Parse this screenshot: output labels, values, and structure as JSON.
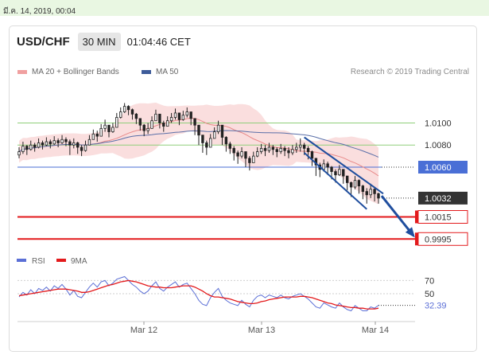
{
  "timestamp": "มี.ค. 14, 2019, 00:04",
  "header": {
    "symbol": "USD/CHF",
    "timeframe": "30 MIN",
    "clock": "01:04:46 CET"
  },
  "legend": {
    "bollinger": "MA 20 + Bollinger Bands",
    "ma50": "MA 50",
    "credit": "Research © 2019 Trading Central"
  },
  "colors": {
    "bollinger": "#f4b6b6",
    "ma20": "#e88a8a",
    "ma50": "#5b6fa8",
    "candle": "#222222",
    "green_level": "#8fcf7a",
    "blue_level": "#4a6fd6",
    "red_level": "#e31a1c",
    "current_label": "#333333",
    "rsi": "#5b6fd6",
    "rsi_ma": "#e31a1c",
    "arrow": "#1f4e9e"
  },
  "chart_data": [
    {
      "type": "candlestick",
      "title": "USD/CHF",
      "x_ticks": [
        "Mar 12",
        "Mar 13",
        "Mar 14"
      ],
      "ylim": [
        0.9988,
        1.0132
      ],
      "levels": [
        {
          "value": 1.01,
          "label": "1.0100",
          "style": "green"
        },
        {
          "value": 1.008,
          "label": "1.0080",
          "style": "green"
        },
        {
          "value": 1.006,
          "label": "1.0060",
          "style": "blue"
        },
        {
          "value": 1.0032,
          "label": "1.0032",
          "style": "current"
        },
        {
          "value": 1.0015,
          "label": "1.0015",
          "style": "red"
        },
        {
          "value": 0.9995,
          "label": "0.9995",
          "style": "red"
        }
      ],
      "close": [
        1.0074,
        1.0079,
        1.0076,
        1.008,
        1.0078,
        1.0082,
        1.008,
        1.0083,
        1.0081,
        1.0084,
        1.0082,
        1.0085,
        1.0083,
        1.008,
        1.0082,
        1.0078,
        1.0075,
        1.008,
        1.0085,
        1.009,
        1.0088,
        1.0095,
        1.0098,
        1.0092,
        1.0096,
        1.0105,
        1.011,
        1.0115,
        1.0112,
        1.0108,
        1.0104,
        1.0098,
        1.0093,
        1.0095,
        1.0102,
        1.0108,
        1.01,
        1.0097,
        1.0102,
        1.0105,
        1.0109,
        1.0103,
        1.0107,
        1.011,
        1.0104,
        1.0098,
        1.0089,
        1.0082,
        1.0078,
        1.0086,
        1.0092,
        1.0098,
        1.0087,
        1.0081,
        1.0077,
        1.0073,
        1.007,
        1.0074,
        1.0068,
        1.0064,
        1.007,
        1.0074,
        1.0077,
        1.0075,
        1.0078,
        1.0076,
        1.0074,
        1.0077,
        1.0075,
        1.0073,
        1.0076,
        1.0078,
        1.008,
        1.0077,
        1.0074,
        1.0068,
        1.0062,
        1.0058,
        1.0063,
        1.006,
        1.0056,
        1.0053,
        1.0058,
        1.0052,
        1.0046,
        1.0042,
        1.0048,
        1.0043,
        1.0038,
        1.0035,
        1.004,
        1.0036,
        1.0032
      ],
      "high": [
        1.0078,
        1.0083,
        1.008,
        1.0084,
        1.0082,
        1.0086,
        1.0084,
        1.0087,
        1.0085,
        1.0088,
        1.0086,
        1.0089,
        1.0087,
        1.0085,
        1.0086,
        1.0083,
        1.008,
        1.0084,
        1.0089,
        1.0094,
        1.0093,
        1.0099,
        1.0103,
        1.0098,
        1.01,
        1.0109,
        1.0114,
        1.0118,
        1.0116,
        1.0113,
        1.0109,
        1.0103,
        1.0099,
        1.01,
        1.0106,
        1.0112,
        1.0108,
        1.0102,
        1.0106,
        1.0109,
        1.0113,
        1.0109,
        1.0111,
        1.0114,
        1.011,
        1.0104,
        1.0096,
        1.0088,
        1.0084,
        1.009,
        1.0096,
        1.0102,
        1.0097,
        1.0088,
        1.0083,
        1.0079,
        1.0075,
        1.0078,
        1.0074,
        1.007,
        1.0074,
        1.0078,
        1.0081,
        1.008,
        1.0082,
        1.008,
        1.0078,
        1.0081,
        1.0079,
        1.0078,
        1.008,
        1.0082,
        1.0086,
        1.0082,
        1.0079,
        1.0075,
        1.0068,
        1.0064,
        1.0067,
        1.0065,
        1.0061,
        1.0058,
        1.0062,
        1.0058,
        1.0052,
        1.0047,
        1.0052,
        1.0049,
        1.0044,
        1.0041,
        1.0045,
        1.0041,
        1.0037
      ],
      "low": [
        1.0068,
        1.0072,
        1.0071,
        1.0075,
        1.0074,
        1.0077,
        1.0076,
        1.0079,
        1.0077,
        1.008,
        1.0078,
        1.0081,
        1.0079,
        1.0071,
        1.0077,
        1.0072,
        1.007,
        1.0074,
        1.008,
        1.0085,
        1.0083,
        1.009,
        1.0092,
        1.0087,
        1.0091,
        1.0099,
        1.0104,
        1.0109,
        1.0107,
        1.0103,
        1.0099,
        1.0093,
        1.0088,
        1.009,
        1.0097,
        1.0102,
        1.0095,
        1.0092,
        1.0097,
        1.01,
        1.0103,
        1.0098,
        1.0102,
        1.0105,
        1.0098,
        1.0089,
        1.008,
        1.0073,
        1.0071,
        1.0079,
        1.0086,
        1.009,
        1.008,
        1.0074,
        1.0072,
        1.0066,
        1.0063,
        1.0068,
        1.006,
        1.0057,
        1.0064,
        1.0069,
        1.0072,
        1.007,
        1.0073,
        1.0071,
        1.0069,
        1.0072,
        1.007,
        1.0068,
        1.0071,
        1.0073,
        1.0074,
        1.0071,
        1.0067,
        1.0061,
        1.0052,
        1.0051,
        1.0056,
        1.0053,
        1.0049,
        1.0046,
        1.0052,
        1.0045,
        1.0039,
        1.0033,
        1.004,
        1.0036,
        1.0031,
        1.0027,
        1.0032,
        1.0029,
        1.0027
      ]
    },
    {
      "type": "line",
      "series": [
        {
          "name": "RSI"
        },
        {
          "name": "9MA"
        }
      ],
      "ylim": [
        15,
        85
      ],
      "y_ticks": [
        {
          "value": 70,
          "label": "70"
        },
        {
          "value": 50,
          "label": "50"
        },
        {
          "value": 32.39,
          "label": "32.39"
        }
      ],
      "rsi": [
        45,
        52,
        48,
        56,
        50,
        58,
        55,
        60,
        54,
        62,
        58,
        64,
        57,
        48,
        55,
        46,
        44,
        52,
        60,
        66,
        60,
        68,
        70,
        62,
        66,
        72,
        74,
        76,
        70,
        64,
        60,
        54,
        50,
        54,
        62,
        68,
        58,
        54,
        60,
        64,
        68,
        60,
        64,
        66,
        58,
        50,
        40,
        34,
        32,
        44,
        52,
        58,
        46,
        40,
        36,
        34,
        32,
        40,
        34,
        30,
        40,
        46,
        48,
        44,
        48,
        46,
        44,
        48,
        44,
        42,
        46,
        48,
        50,
        46,
        42,
        36,
        30,
        28,
        36,
        33,
        30,
        28,
        36,
        30,
        26,
        24,
        32,
        28,
        24,
        24,
        30,
        28,
        32.39
      ],
      "rsi_ma": [
        47,
        48,
        49,
        50,
        51,
        52,
        53,
        54,
        55,
        56,
        57,
        57,
        57,
        56,
        55,
        54,
        52,
        52,
        53,
        55,
        57,
        59,
        61,
        63,
        64,
        66,
        68,
        69,
        70,
        69,
        68,
        66,
        64,
        62,
        61,
        60,
        60,
        59,
        59,
        59,
        60,
        61,
        62,
        62,
        62,
        60,
        57,
        54,
        50,
        47,
        45,
        45,
        44,
        43,
        42,
        40,
        38,
        37,
        36,
        35,
        35,
        36,
        38,
        39,
        41,
        42,
        43,
        44,
        45,
        45,
        45,
        45,
        46,
        46,
        45,
        44,
        42,
        40,
        38,
        36,
        35,
        33,
        32,
        31,
        30,
        29,
        29,
        28,
        28,
        27,
        27,
        27,
        28
      ]
    }
  ]
}
